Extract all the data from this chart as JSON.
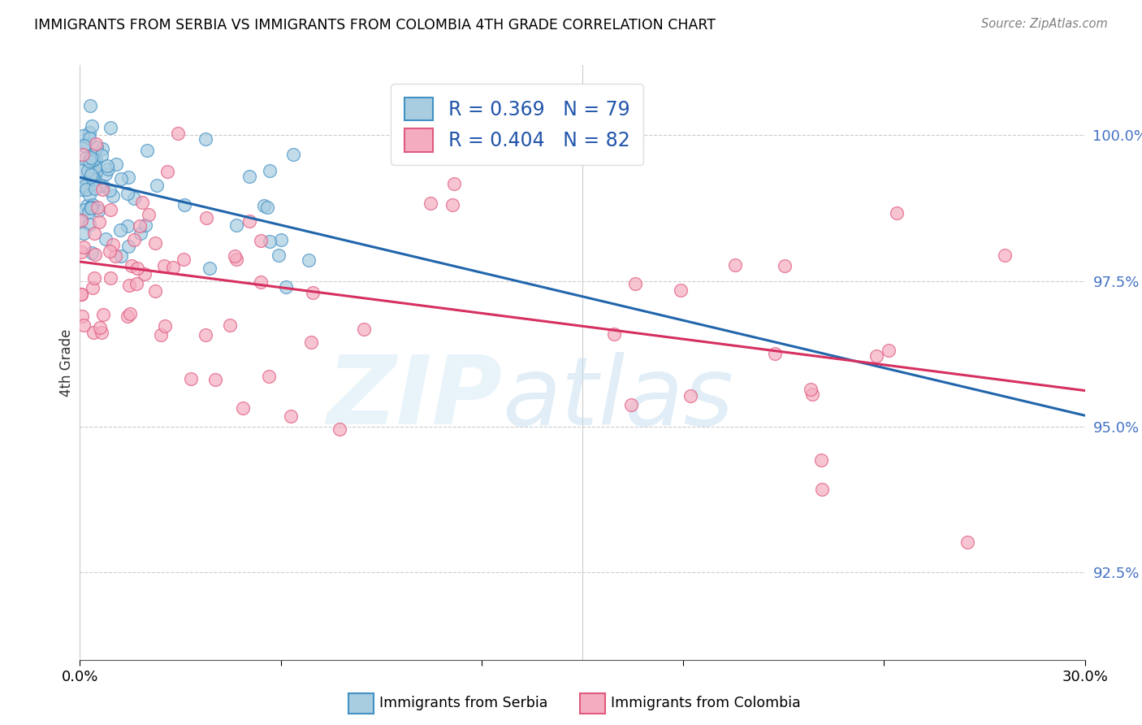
{
  "title": "IMMIGRANTS FROM SERBIA VS IMMIGRANTS FROM COLOMBIA 4TH GRADE CORRELATION CHART",
  "source": "Source: ZipAtlas.com",
  "ylabel": "4th Grade",
  "yticks": [
    92.5,
    95.0,
    97.5,
    100.0
  ],
  "ytick_labels": [
    "92.5%",
    "95.0%",
    "97.5%",
    "100.0%"
  ],
  "xlim": [
    0.0,
    30.0
  ],
  "ylim": [
    91.0,
    101.2
  ],
  "serbia_color": "#a8cce0",
  "serbia_edge": "#4292c6",
  "colombia_color": "#f4adc0",
  "colombia_edge": "#e05a80",
  "serbia_line_color": "#2166ac",
  "colombia_line_color": "#d63060",
  "legend_r_serbia": "R = 0.369",
  "legend_n_serbia": "N = 79",
  "legend_r_colombia": "R = 0.404",
  "legend_n_colombia": "N = 82",
  "serbia_R": 0.369,
  "serbia_N": 79,
  "colombia_R": 0.404,
  "colombia_N": 82
}
